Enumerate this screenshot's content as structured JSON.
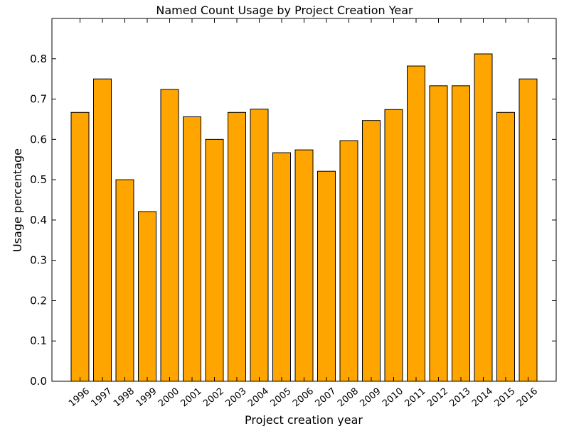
{
  "chart_data": {
    "type": "bar",
    "title": "Named Count Usage by Project Creation Year",
    "xlabel": "Project creation year",
    "ylabel": "Usage percentage",
    "categories": [
      "1996",
      "1997",
      "1998",
      "1999",
      "2000",
      "2001",
      "2002",
      "2003",
      "2004",
      "2005",
      "2006",
      "2007",
      "2008",
      "2009",
      "2010",
      "2011",
      "2012",
      "2013",
      "2014",
      "2015",
      "2016"
    ],
    "values": [
      0.667,
      0.75,
      0.5,
      0.421,
      0.724,
      0.656,
      0.6,
      0.667,
      0.675,
      0.567,
      0.574,
      0.521,
      0.597,
      0.647,
      0.674,
      0.782,
      0.733,
      0.733,
      0.812,
      0.667,
      0.75
    ],
    "ylim": [
      0,
      0.9
    ],
    "yticks": [
      "0.0",
      "0.1",
      "0.2",
      "0.3",
      "0.4",
      "0.5",
      "0.6",
      "0.7",
      "0.8"
    ],
    "bar_color": "#ffa500",
    "edge_color": "#000000",
    "grid": false,
    "legend": "none"
  }
}
